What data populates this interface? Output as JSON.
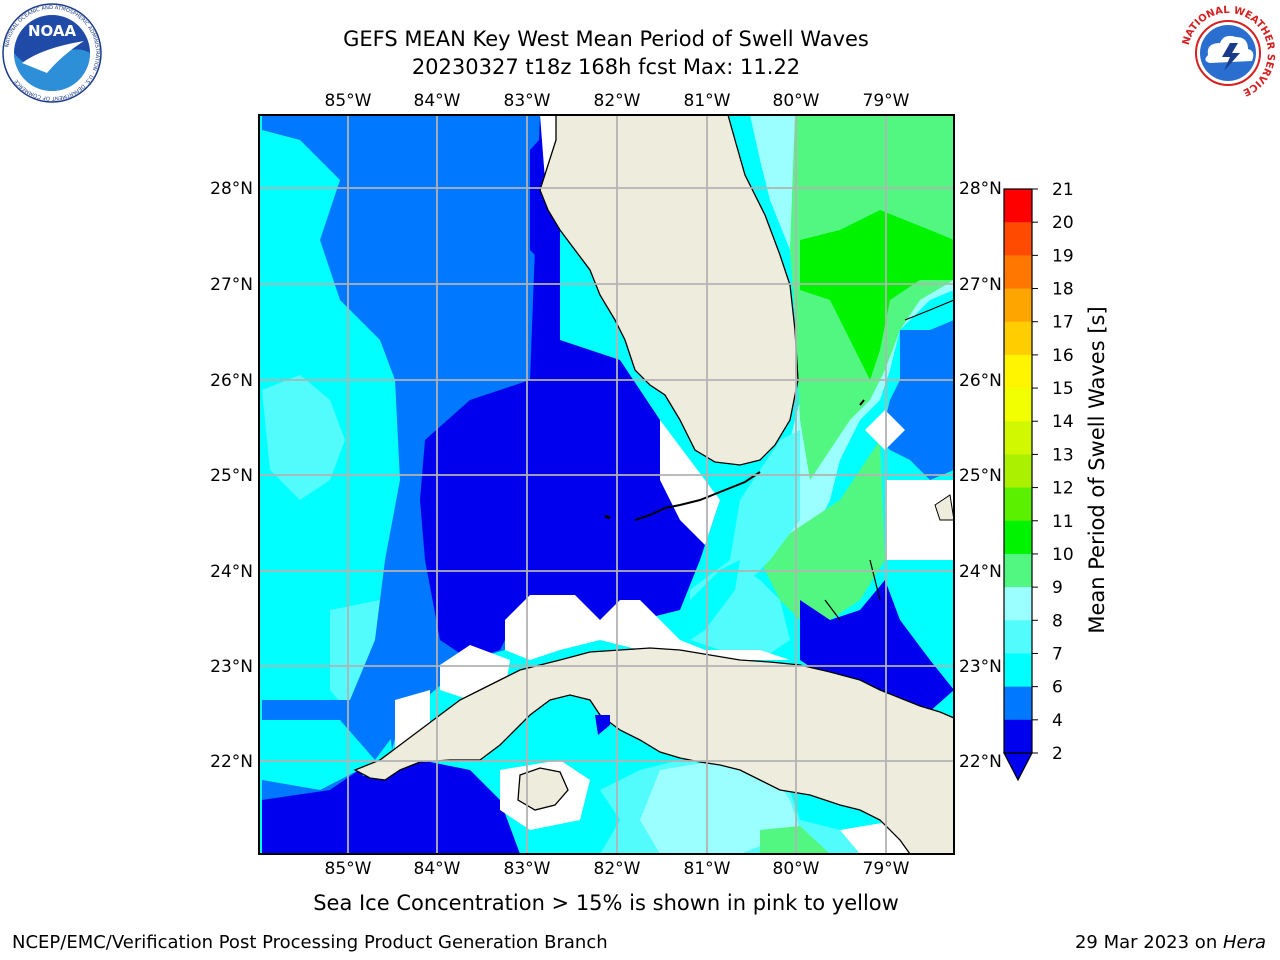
{
  "header": {
    "title_line1": "GEFS MEAN Key West Mean Period of Swell Waves",
    "title_line2": "20230327 t18z 168h fcst   Max: 11.22"
  },
  "logos": {
    "left": {
      "icon": "noaa-logo-icon",
      "text": "NOAA",
      "ring": "NATIONAL OCEANIC AND ATMOSPHERIC ADMINISTRATION · U.S. DEPARTMENT OF COMMERCE"
    },
    "right": {
      "icon": "nws-logo-icon",
      "ring": "NATIONAL WEATHER SERVICE"
    }
  },
  "map": {
    "lon_ticks": [
      "85°W",
      "84°W",
      "83°W",
      "82°W",
      "81°W",
      "80°W",
      "79°W"
    ],
    "lat_ticks": [
      "28°N",
      "27°N",
      "26°N",
      "25°N",
      "24°N",
      "23°N",
      "22°N"
    ],
    "lon_range": [
      -86.0,
      -78.25
    ],
    "lat_range": [
      21.05,
      28.75
    ],
    "grid": true,
    "colors": {
      "land": "#eeecdc",
      "coast": "#000000",
      "grid": "#b3b3b3",
      "no_data": "#ffffff"
    }
  },
  "colorbar": {
    "label": "Mean Period of Swell Waves [s]",
    "ticks": [
      "2",
      "4",
      "6",
      "7",
      "8",
      "9",
      "10",
      "11",
      "12",
      "13",
      "14",
      "15",
      "16",
      "17",
      "18",
      "19",
      "20",
      "21"
    ],
    "colors": [
      "#0000ee",
      "#0078ff",
      "#00ffff",
      "#52fcfc",
      "#9cffff",
      "#52f782",
      "#00f400",
      "#5af000",
      "#aaf000",
      "#d2f800",
      "#f2ff00",
      "#fff500",
      "#ffcd00",
      "#ffa500",
      "#ff7700",
      "#ff4a00",
      "#ff0000"
    ],
    "under_color": "#0000ee",
    "extend": "min"
  },
  "note": "Sea Ice Concentration > 15% is shown in pink to yellow",
  "footer": {
    "left": "NCEP/EMC/Verification Post Processing Product Generation Branch",
    "right_date": "29 Mar 2023 on ",
    "right_host": "Hera"
  }
}
